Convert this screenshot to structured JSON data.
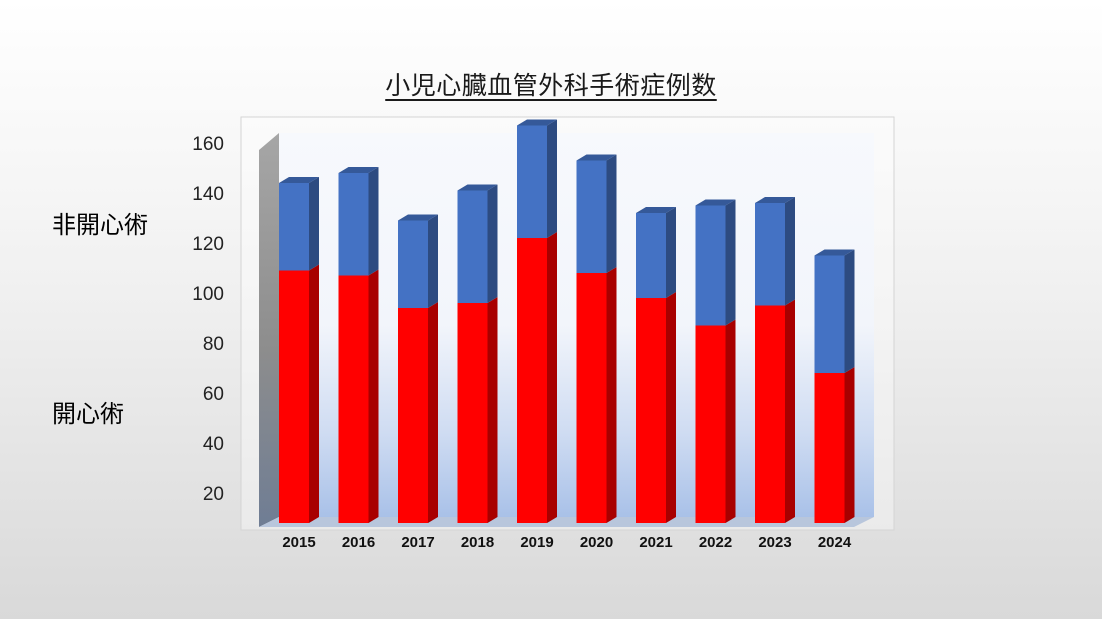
{
  "chart_data": {
    "type": "bar",
    "stacked": true,
    "three_d": true,
    "title": "小児心臓血管外科手術症例数",
    "categories": [
      "2015",
      "2016",
      "2017",
      "2018",
      "2019",
      "2020",
      "2021",
      "2022",
      "2023",
      "2024"
    ],
    "series": [
      {
        "name": "開心術",
        "color": "#ff0000",
        "values": [
          101,
          99,
          86,
          88,
          114,
          100,
          90,
          79,
          87,
          60
        ]
      },
      {
        "name": "非開心術",
        "color": "#4472c4",
        "values": [
          35,
          41,
          35,
          45,
          45,
          45,
          34,
          48,
          41,
          47
        ]
      }
    ],
    "y_ticks": [
      "20",
      "40",
      "60",
      "80",
      "100",
      "120",
      "140",
      "160"
    ],
    "ylim": [
      8,
      164
    ],
    "grid": false
  }
}
